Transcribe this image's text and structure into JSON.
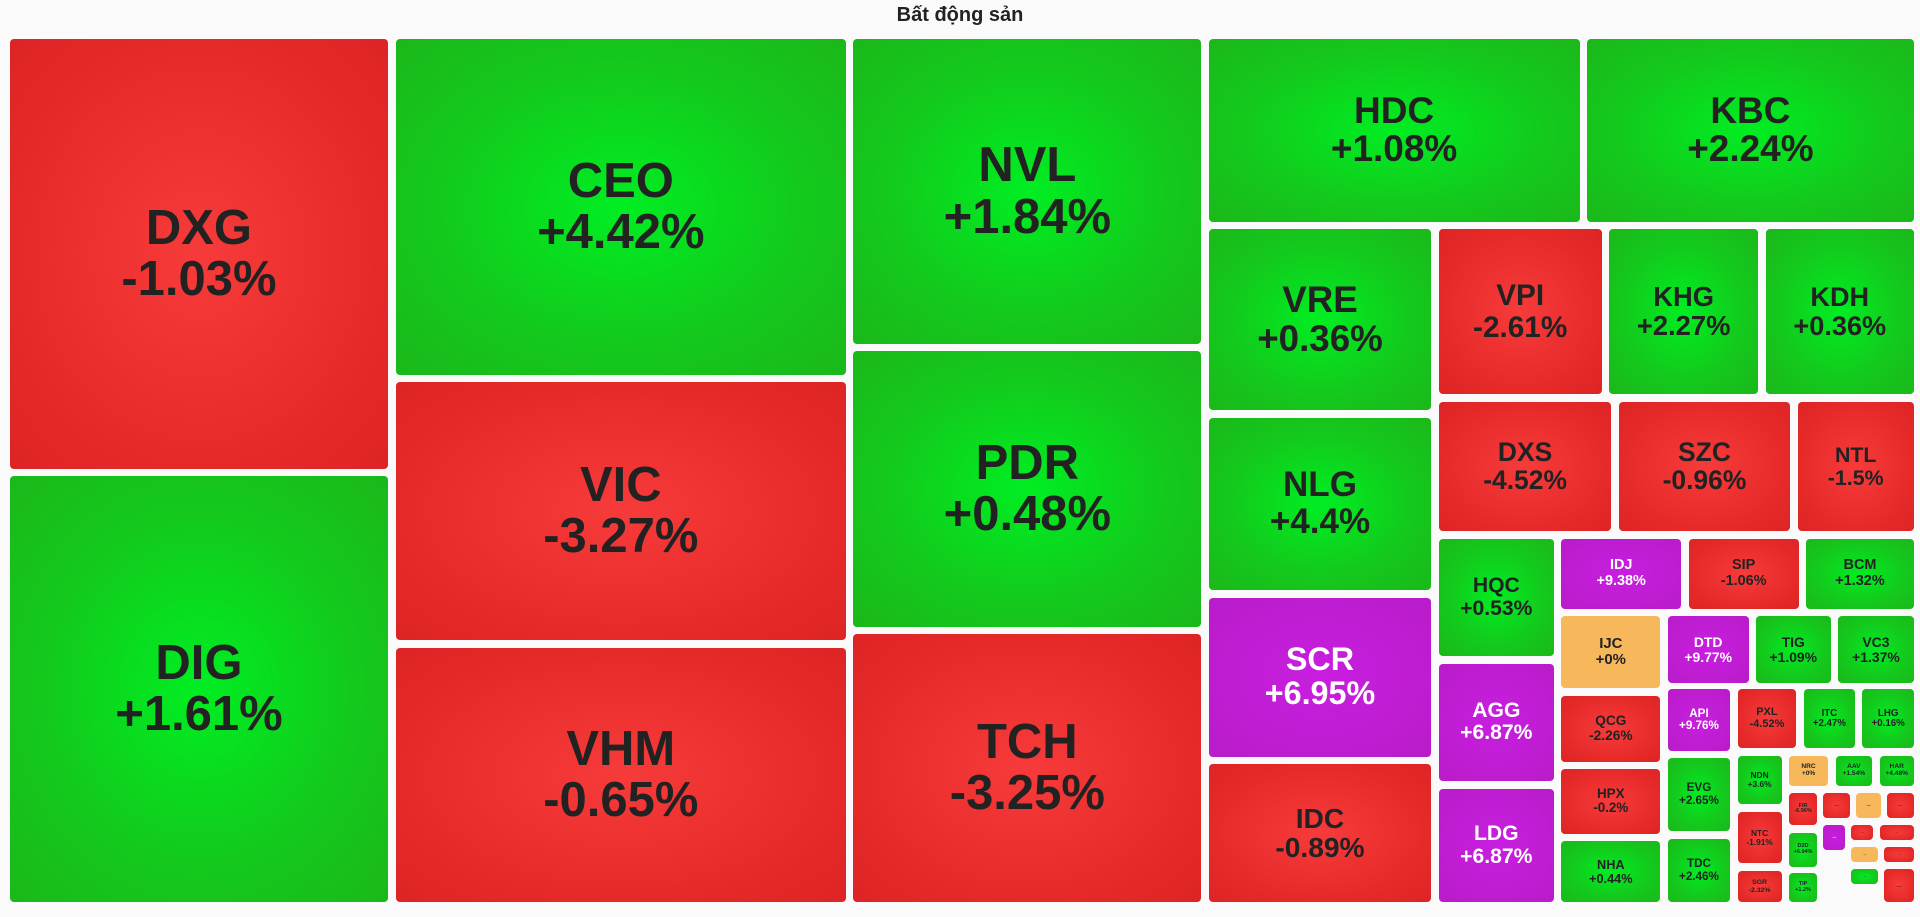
{
  "title": "Bất động sản",
  "tiles": [
    {
      "ticker": "DXG",
      "change": "-1.03%",
      "color": "red"
    },
    {
      "ticker": "DIG",
      "change": "+1.61%",
      "color": "green"
    },
    {
      "ticker": "CEO",
      "change": "+4.42%",
      "color": "green"
    },
    {
      "ticker": "VIC",
      "change": "-3.27%",
      "color": "red"
    },
    {
      "ticker": "VHM",
      "change": "-0.65%",
      "color": "red"
    },
    {
      "ticker": "NVL",
      "change": "+1.84%",
      "color": "green"
    },
    {
      "ticker": "PDR",
      "change": "+0.48%",
      "color": "green"
    },
    {
      "ticker": "TCH",
      "change": "-3.25%",
      "color": "red"
    },
    {
      "ticker": "HDC",
      "change": "+1.08%",
      "color": "green"
    },
    {
      "ticker": "KBC",
      "change": "+2.24%",
      "color": "green"
    },
    {
      "ticker": "VRE",
      "change": "+0.36%",
      "color": "green"
    },
    {
      "ticker": "NLG",
      "change": "+4.4%",
      "color": "green"
    },
    {
      "ticker": "SCR",
      "change": "+6.95%",
      "color": "purple"
    },
    {
      "ticker": "IDC",
      "change": "-0.89%",
      "color": "red"
    },
    {
      "ticker": "VPI",
      "change": "-2.61%",
      "color": "red"
    },
    {
      "ticker": "KHG",
      "change": "+2.27%",
      "color": "green"
    },
    {
      "ticker": "KDH",
      "change": "+0.36%",
      "color": "green"
    },
    {
      "ticker": "DXS",
      "change": "-4.52%",
      "color": "red"
    },
    {
      "ticker": "SZC",
      "change": "-0.96%",
      "color": "red"
    },
    {
      "ticker": "NTL",
      "change": "-1.5%",
      "color": "red"
    },
    {
      "ticker": "HQC",
      "change": "+0.53%",
      "color": "green"
    },
    {
      "ticker": "AGG",
      "change": "+6.87%",
      "color": "purple"
    },
    {
      "ticker": "LDG",
      "change": "+6.87%",
      "color": "purple"
    },
    {
      "ticker": "IDJ",
      "change": "+9.38%",
      "color": "purple"
    },
    {
      "ticker": "SIP",
      "change": "-1.06%",
      "color": "red"
    },
    {
      "ticker": "BCM",
      "change": "+1.32%",
      "color": "green"
    },
    {
      "ticker": "IJC",
      "change": "+0%",
      "color": "yellow"
    },
    {
      "ticker": "DTD",
      "change": "+9.77%",
      "color": "purple"
    },
    {
      "ticker": "TIG",
      "change": "+1.09%",
      "color": "green"
    },
    {
      "ticker": "VC3",
      "change": "+1.37%",
      "color": "green"
    },
    {
      "ticker": "QCG",
      "change": "-2.26%",
      "color": "red"
    },
    {
      "ticker": "API",
      "change": "+9.76%",
      "color": "purple"
    },
    {
      "ticker": "PXL",
      "change": "-4.52%",
      "color": "red"
    },
    {
      "ticker": "ITC",
      "change": "+2.47%",
      "color": "green"
    },
    {
      "ticker": "LHG",
      "change": "+0.16%",
      "color": "green"
    },
    {
      "ticker": "HPX",
      "change": "-0.2%",
      "color": "red"
    },
    {
      "ticker": "EVG",
      "change": "+2.65%",
      "color": "green"
    },
    {
      "ticker": "NHA",
      "change": "+0.44%",
      "color": "green"
    },
    {
      "ticker": "TDC",
      "change": "+2.46%",
      "color": "green"
    },
    {
      "ticker": "NDN",
      "change": "+3.6%",
      "color": "green"
    },
    {
      "ticker": "NRC",
      "change": "+0%",
      "color": "yellow"
    },
    {
      "ticker": "AAV",
      "change": "+1.54%",
      "color": "green"
    },
    {
      "ticker": "HAR",
      "change": "+4.48%",
      "color": "green"
    },
    {
      "ticker": "NTC",
      "change": "-1.91%",
      "color": "red"
    },
    {
      "ticker": "SGR",
      "change": "-2.32%",
      "color": "red"
    },
    {
      "ticker": "FIR",
      "change": "-6.96%",
      "color": "red"
    },
    {
      "ticker": "D2D",
      "change": "+6.94%",
      "color": "green"
    },
    {
      "ticker": "TIP",
      "change": "+1.2%",
      "color": "green"
    },
    {
      "ticker": "...",
      "color": "red"
    },
    {
      "ticker": "...",
      "color": "yellow"
    },
    {
      "ticker": "...",
      "color": "red"
    },
    {
      "ticker": "...",
      "color": "purple"
    },
    {
      "ticker": "...",
      "color": "red"
    },
    {
      "ticker": "...",
      "color": "red"
    },
    {
      "ticker": "...",
      "color": "yellow"
    },
    {
      "ticker": "...",
      "color": "red"
    },
    {
      "ticker": "...",
      "color": "green"
    },
    {
      "ticker": "...",
      "color": "red"
    }
  ]
}
